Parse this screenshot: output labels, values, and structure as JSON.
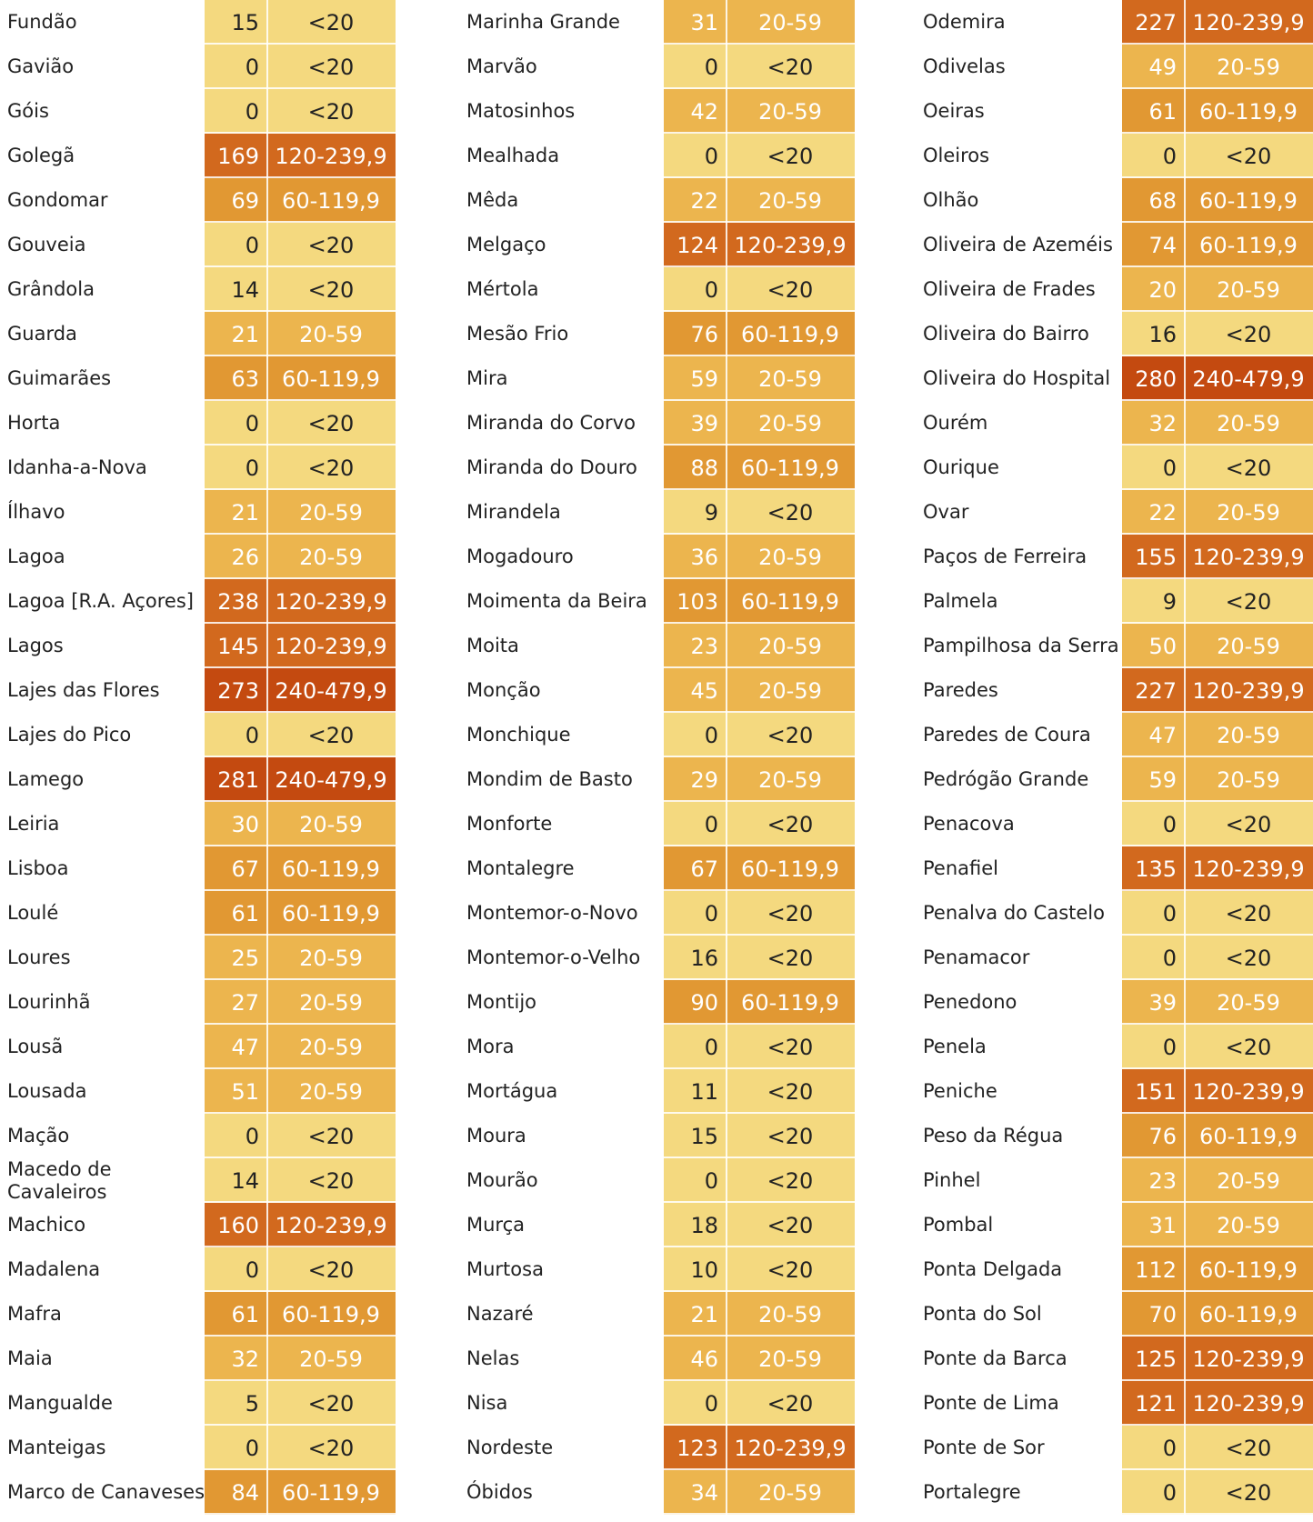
{
  "colors": {
    "<20": "#f4d97f",
    "20-59": "#ecb54e",
    "60-119,9": "#e19833",
    "120-239,9": "#d2691e",
    "240-479,9": "#c44a10"
  },
  "text_colors": {
    "<20": "#222222",
    "20-59": "#ffffff",
    "60-119,9": "#ffffff",
    "120-239,9": "#ffffff",
    "240-479,9": "#ffffff"
  },
  "columns": [
    {
      "rows": [
        {
          "name": "Fundão",
          "value": "15",
          "category": "<20"
        },
        {
          "name": "Gavião",
          "value": "0",
          "category": "<20"
        },
        {
          "name": "Góis",
          "value": "0",
          "category": "<20"
        },
        {
          "name": "Golegã",
          "value": "169",
          "category": "120-239,9"
        },
        {
          "name": "Gondomar",
          "value": "69",
          "category": "60-119,9"
        },
        {
          "name": "Gouveia",
          "value": "0",
          "category": "<20"
        },
        {
          "name": "Grândola",
          "value": "14",
          "category": "<20"
        },
        {
          "name": "Guarda",
          "value": "21",
          "category": "20-59"
        },
        {
          "name": "Guimarães",
          "value": "63",
          "category": "60-119,9"
        },
        {
          "name": "Horta",
          "value": "0",
          "category": "<20"
        },
        {
          "name": "Idanha-a-Nova",
          "value": "0",
          "category": "<20"
        },
        {
          "name": "Ílhavo",
          "value": "21",
          "category": "20-59"
        },
        {
          "name": "Lagoa",
          "value": "26",
          "category": "20-59"
        },
        {
          "name": "Lagoa [R.A. Açores]",
          "value": "238",
          "category": "120-239,9"
        },
        {
          "name": "Lagos",
          "value": "145",
          "category": "120-239,9"
        },
        {
          "name": "Lajes das Flores",
          "value": "273",
          "category": "240-479,9"
        },
        {
          "name": "Lajes do Pico",
          "value": "0",
          "category": "<20"
        },
        {
          "name": "Lamego",
          "value": "281",
          "category": "240-479,9"
        },
        {
          "name": "Leiria",
          "value": "30",
          "category": "20-59"
        },
        {
          "name": "Lisboa",
          "value": "67",
          "category": "60-119,9"
        },
        {
          "name": "Loulé",
          "value": "61",
          "category": "60-119,9"
        },
        {
          "name": "Loures",
          "value": "25",
          "category": "20-59"
        },
        {
          "name": "Lourinhã",
          "value": "27",
          "category": "20-59"
        },
        {
          "name": "Lousã",
          "value": "47",
          "category": "20-59"
        },
        {
          "name": "Lousada",
          "value": "51",
          "category": "20-59"
        },
        {
          "name": "Mação",
          "value": "0",
          "category": "<20"
        },
        {
          "name": "Macedo de Cavaleiros",
          "value": "14",
          "category": "<20"
        },
        {
          "name": "Machico",
          "value": "160",
          "category": "120-239,9"
        },
        {
          "name": "Madalena",
          "value": "0",
          "category": "<20"
        },
        {
          "name": "Mafra",
          "value": "61",
          "category": "60-119,9"
        },
        {
          "name": "Maia",
          "value": "32",
          "category": "20-59"
        },
        {
          "name": "Mangualde",
          "value": "5",
          "category": "<20"
        },
        {
          "name": "Manteigas",
          "value": "0",
          "category": "<20"
        },
        {
          "name": "Marco de Canaveses",
          "value": "84",
          "category": "60-119,9"
        }
      ]
    },
    {
      "rows": [
        {
          "name": "Marinha Grande",
          "value": "31",
          "category": "20-59"
        },
        {
          "name": "Marvão",
          "value": "0",
          "category": "<20"
        },
        {
          "name": "Matosinhos",
          "value": "42",
          "category": "20-59"
        },
        {
          "name": "Mealhada",
          "value": "0",
          "category": "<20"
        },
        {
          "name": "Mêda",
          "value": "22",
          "category": "20-59"
        },
        {
          "name": "Melgaço",
          "value": "124",
          "category": "120-239,9"
        },
        {
          "name": "Mértola",
          "value": "0",
          "category": "<20"
        },
        {
          "name": "Mesão Frio",
          "value": "76",
          "category": "60-119,9"
        },
        {
          "name": "Mira",
          "value": "59",
          "category": "20-59"
        },
        {
          "name": "Miranda do Corvo",
          "value": "39",
          "category": "20-59"
        },
        {
          "name": "Miranda do Douro",
          "value": "88",
          "category": "60-119,9"
        },
        {
          "name": "Mirandela",
          "value": "9",
          "category": "<20"
        },
        {
          "name": "Mogadouro",
          "value": "36",
          "category": "20-59"
        },
        {
          "name": "Moimenta da Beira",
          "value": "103",
          "category": "60-119,9"
        },
        {
          "name": "Moita",
          "value": "23",
          "category": "20-59"
        },
        {
          "name": "Monção",
          "value": "45",
          "category": "20-59"
        },
        {
          "name": "Monchique",
          "value": "0",
          "category": "<20"
        },
        {
          "name": "Mondim de Basto",
          "value": "29",
          "category": "20-59"
        },
        {
          "name": "Monforte",
          "value": "0",
          "category": "<20"
        },
        {
          "name": "Montalegre",
          "value": "67",
          "category": "60-119,9"
        },
        {
          "name": "Montemor-o-Novo",
          "value": "0",
          "category": "<20"
        },
        {
          "name": "Montemor-o-Velho",
          "value": "16",
          "category": "<20"
        },
        {
          "name": "Montijo",
          "value": "90",
          "category": "60-119,9"
        },
        {
          "name": "Mora",
          "value": "0",
          "category": "<20"
        },
        {
          "name": "Mortágua",
          "value": "11",
          "category": "<20"
        },
        {
          "name": "Moura",
          "value": "15",
          "category": "<20"
        },
        {
          "name": "Mourão",
          "value": "0",
          "category": "<20"
        },
        {
          "name": "Murça",
          "value": "18",
          "category": "<20"
        },
        {
          "name": "Murtosa",
          "value": "10",
          "category": "<20"
        },
        {
          "name": "Nazaré",
          "value": "21",
          "category": "20-59"
        },
        {
          "name": "Nelas",
          "value": "46",
          "category": "20-59"
        },
        {
          "name": "Nisa",
          "value": "0",
          "category": "<20"
        },
        {
          "name": "Nordeste",
          "value": "123",
          "category": "120-239,9"
        },
        {
          "name": "Óbidos",
          "value": "34",
          "category": "20-59"
        }
      ]
    },
    {
      "rows": [
        {
          "name": "Odemira",
          "value": "227",
          "category": "120-239,9"
        },
        {
          "name": "Odivelas",
          "value": "49",
          "category": "20-59"
        },
        {
          "name": "Oeiras",
          "value": "61",
          "category": "60-119,9"
        },
        {
          "name": "Oleiros",
          "value": "0",
          "category": "<20"
        },
        {
          "name": "Olhão",
          "value": "68",
          "category": "60-119,9"
        },
        {
          "name": "Oliveira de Azeméis",
          "value": "74",
          "category": "60-119,9"
        },
        {
          "name": "Oliveira de Frades",
          "value": "20",
          "category": "20-59"
        },
        {
          "name": "Oliveira do Bairro",
          "value": "16",
          "category": "<20"
        },
        {
          "name": "Oliveira do Hospital",
          "value": "280",
          "category": "240-479,9"
        },
        {
          "name": "Ourém",
          "value": "32",
          "category": "20-59"
        },
        {
          "name": "Ourique",
          "value": "0",
          "category": "<20"
        },
        {
          "name": "Ovar",
          "value": "22",
          "category": "20-59"
        },
        {
          "name": "Paços de Ferreira",
          "value": "155",
          "category": "120-239,9"
        },
        {
          "name": "Palmela",
          "value": "9",
          "category": "<20"
        },
        {
          "name": "Pampilhosa da Serra",
          "value": "50",
          "category": "20-59"
        },
        {
          "name": "Paredes",
          "value": "227",
          "category": "120-239,9"
        },
        {
          "name": "Paredes de Coura",
          "value": "47",
          "category": "20-59"
        },
        {
          "name": "Pedrógão Grande",
          "value": "59",
          "category": "20-59"
        },
        {
          "name": "Penacova",
          "value": "0",
          "category": "<20"
        },
        {
          "name": "Penafiel",
          "value": "135",
          "category": "120-239,9"
        },
        {
          "name": "Penalva do Castelo",
          "value": "0",
          "category": "<20"
        },
        {
          "name": "Penamacor",
          "value": "0",
          "category": "<20"
        },
        {
          "name": "Penedono",
          "value": "39",
          "category": "20-59"
        },
        {
          "name": "Penela",
          "value": "0",
          "category": "<20"
        },
        {
          "name": "Peniche",
          "value": "151",
          "category": "120-239,9"
        },
        {
          "name": "Peso da Régua",
          "value": "76",
          "category": "60-119,9"
        },
        {
          "name": "Pinhel",
          "value": "23",
          "category": "20-59"
        },
        {
          "name": "Pombal",
          "value": "31",
          "category": "20-59"
        },
        {
          "name": "Ponta Delgada",
          "value": "112",
          "category": "60-119,9"
        },
        {
          "name": "Ponta do Sol",
          "value": "70",
          "category": "60-119,9"
        },
        {
          "name": "Ponte da Barca",
          "value": "125",
          "category": "120-239,9"
        },
        {
          "name": "Ponte de Lima",
          "value": "121",
          "category": "120-239,9"
        },
        {
          "name": "Ponte de Sor",
          "value": "0",
          "category": "<20"
        },
        {
          "name": "Portalegre",
          "value": "0",
          "category": "<20"
        }
      ]
    }
  ]
}
